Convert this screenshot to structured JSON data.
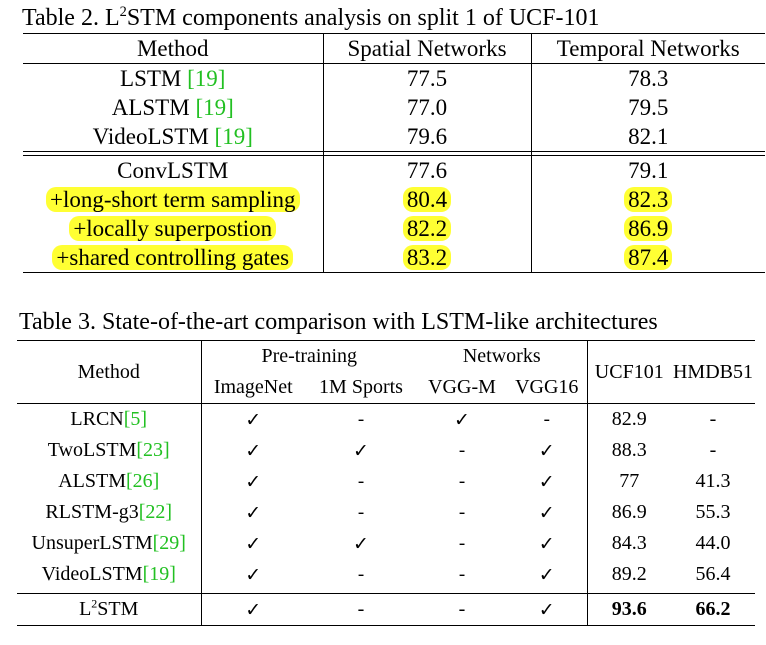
{
  "table2": {
    "caption_prefix": "Table 2. L",
    "caption_sup": "2",
    "caption_rest": "STM components analysis on split 1 of UCF-101",
    "headers": [
      "Method",
      "Spatial Networks",
      "Temporal Networks"
    ],
    "baseline_rows": [
      {
        "method": "LSTM ",
        "ref": "[19]",
        "spatial": "77.5",
        "temporal": "78.3"
      },
      {
        "method": "ALSTM ",
        "ref": "[19]",
        "spatial": "77.0",
        "temporal": "79.5"
      },
      {
        "method": "VideoLSTM ",
        "ref": "[19]",
        "spatial": "79.6",
        "temporal": "82.1"
      }
    ],
    "ablation_rows": [
      {
        "method": "ConvLSTM",
        "spatial": "77.6",
        "temporal": "79.1"
      },
      {
        "method": "+long-short term sampling",
        "spatial": "80.4",
        "temporal": "82.3"
      },
      {
        "method": "+locally superpostion",
        "spatial": "82.2",
        "temporal": "86.9"
      },
      {
        "method": "+shared controlling gates",
        "spatial": "83.2",
        "temporal": "87.4"
      }
    ],
    "highlight_color": "#ffff33"
  },
  "table3": {
    "caption": "Table 3. State-of-the-art comparison with LSTM-like architectures",
    "headers": {
      "method": "Method",
      "pretraining": "Pre-training",
      "networks": "Networks",
      "imagenet": "ImageNet",
      "sports": "1M Sports",
      "vggm": "VGG-M",
      "vgg16": "VGG16",
      "ucf": "UCF101",
      "hmdb": "HMDB51"
    },
    "rows": [
      {
        "method": "LRCN",
        "ref": "[5]",
        "imagenet": "✓",
        "sports": "-",
        "vggm": "✓",
        "vgg16": "-",
        "ucf": "82.9",
        "hmdb": "-"
      },
      {
        "method": "TwoLSTM",
        "ref": "[23]",
        "imagenet": "✓",
        "sports": "✓",
        "vggm": "-",
        "vgg16": "✓",
        "ucf": "88.3",
        "hmdb": "-"
      },
      {
        "method": "ALSTM",
        "ref": "[26]",
        "imagenet": "✓",
        "sports": "-",
        "vggm": "-",
        "vgg16": "✓",
        "ucf": "77",
        "hmdb": "41.3"
      },
      {
        "method": "RLSTM-g3",
        "ref": "[22]",
        "imagenet": "✓",
        "sports": "-",
        "vggm": "-",
        "vgg16": "✓",
        "ucf": "86.9",
        "hmdb": "55.3"
      },
      {
        "method": "UnsuperLSTM",
        "ref": "[29]",
        "imagenet": "✓",
        "sports": "✓",
        "vggm": "-",
        "vgg16": "✓",
        "ucf": "84.3",
        "hmdb": "44.0"
      },
      {
        "method": "VideoLSTM",
        "ref": "[19]",
        "imagenet": "✓",
        "sports": "-",
        "vggm": "-",
        "vgg16": "✓",
        "ucf": "89.2",
        "hmdb": "56.4"
      }
    ],
    "final": {
      "method_prefix": "L",
      "method_sup": "2",
      "method_rest": "STM",
      "imagenet": "✓",
      "sports": "-",
      "vggm": "-",
      "vgg16": "✓",
      "ucf": "93.6",
      "hmdb": "66.2"
    },
    "ref_color": "#22c022"
  }
}
